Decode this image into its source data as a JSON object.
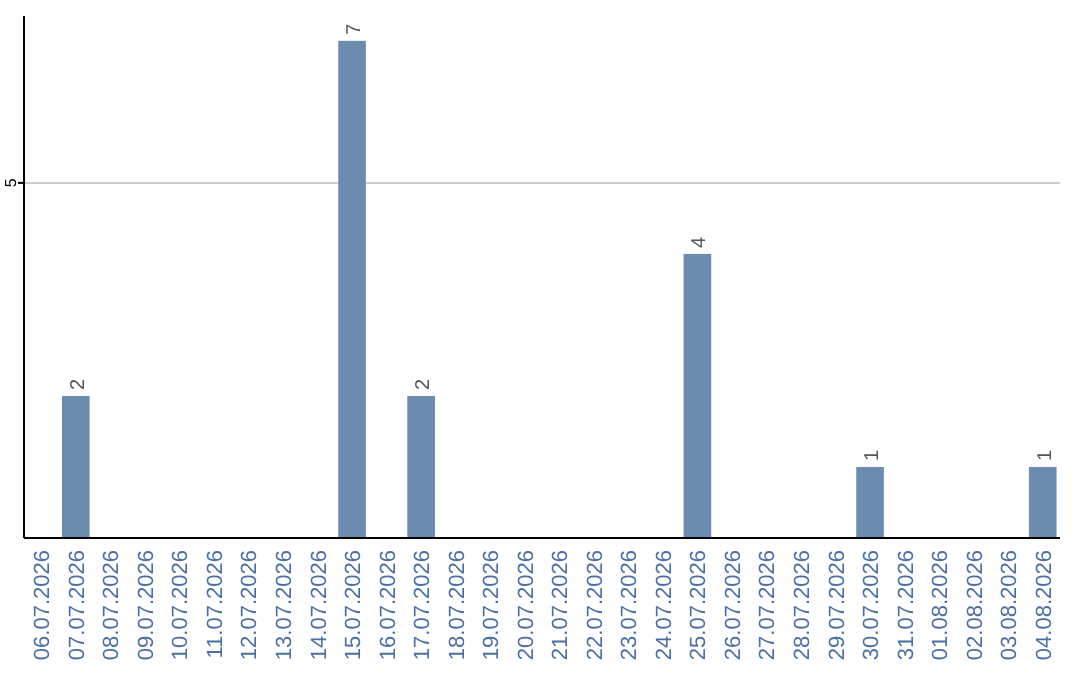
{
  "chart_data": {
    "type": "bar",
    "categories": [
      "06.07.2026",
      "07.07.2026",
      "08.07.2026",
      "09.07.2026",
      "10.07.2026",
      "11.07.2026",
      "12.07.2026",
      "13.07.2026",
      "14.07.2026",
      "15.07.2026",
      "16.07.2026",
      "17.07.2026",
      "18.07.2026",
      "19.07.2026",
      "20.07.2026",
      "21.07.2026",
      "22.07.2026",
      "23.07.2026",
      "24.07.2026",
      "25.07.2026",
      "26.07.2026",
      "27.07.2026",
      "28.07.2026",
      "29.07.2026",
      "30.07.2026",
      "31.07.2026",
      "01.08.2026",
      "02.08.2026",
      "03.08.2026",
      "04.08.2026"
    ],
    "values": [
      0,
      2,
      0,
      0,
      0,
      0,
      0,
      0,
      0,
      7,
      0,
      2,
      0,
      0,
      0,
      0,
      0,
      0,
      0,
      4,
      0,
      0,
      0,
      0,
      1,
      0,
      0,
      0,
      0,
      1
    ],
    "value_labels": [
      null,
      "2",
      null,
      null,
      null,
      null,
      null,
      null,
      null,
      "7",
      null,
      "2",
      null,
      null,
      null,
      null,
      null,
      null,
      null,
      "4",
      null,
      null,
      null,
      null,
      "1",
      null,
      null,
      null,
      null,
      "1"
    ],
    "color": "#6b8cae",
    "ylim": [
      0,
      7.35
    ],
    "yticks": [
      5
    ],
    "grid": "y"
  }
}
